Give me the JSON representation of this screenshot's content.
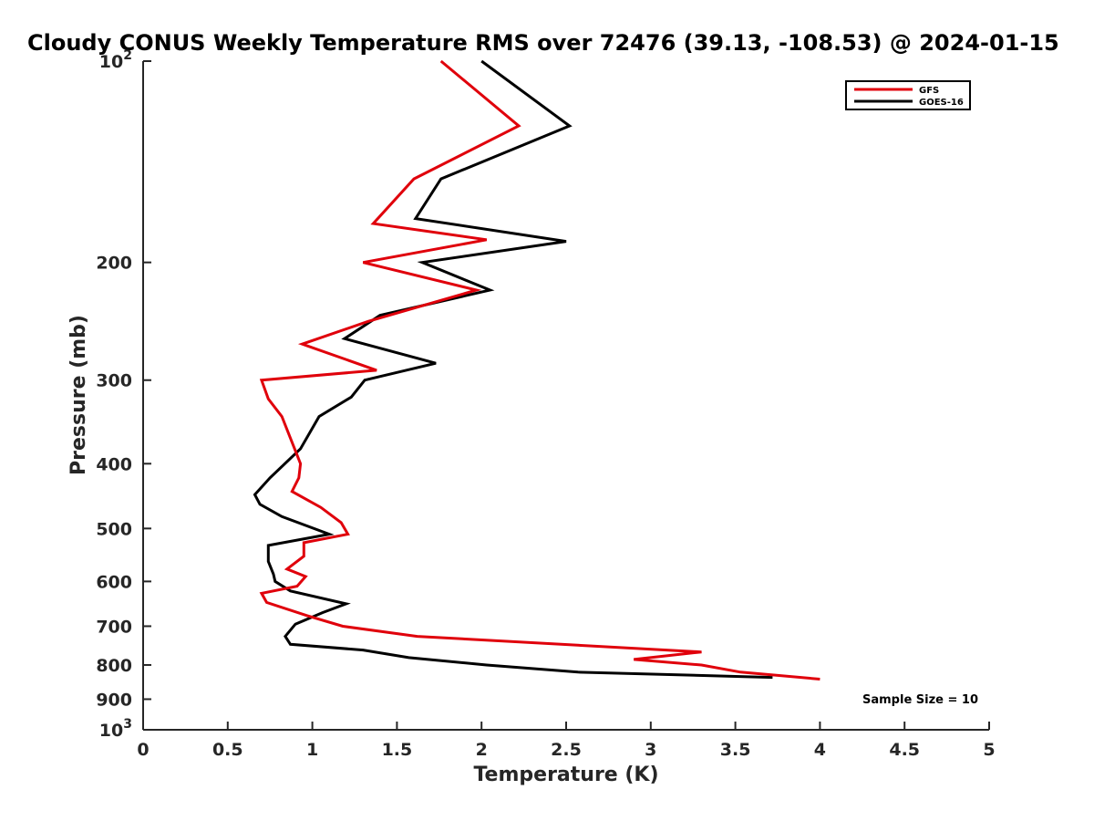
{
  "chart_data": {
    "type": "line",
    "title": "Cloudy CONUS Weekly Temperature RMS over 72476 (39.13, -108.53) @ 2024-01-15",
    "xlabel": "Temperature (K)",
    "ylabel": "Pressure (mb)",
    "xlim": [
      0,
      5
    ],
    "ylim": [
      100,
      1000
    ],
    "yscale": "log",
    "y_reversed": true,
    "grid": false,
    "legend_position": "top-right",
    "x_ticks": [
      0,
      0.5,
      1,
      1.5,
      2,
      2.5,
      3,
      3.5,
      4,
      4.5,
      5
    ],
    "x_tick_labels": [
      "0",
      "0.5",
      "1",
      "1.5",
      "2",
      "2.5",
      "3",
      "3.5",
      "4",
      "4.5",
      "5"
    ],
    "y_ticks": [
      100,
      200,
      300,
      400,
      500,
      600,
      700,
      800,
      900,
      1000
    ],
    "y_tick_labels": [
      {
        "base": "10",
        "exp": "2"
      },
      {
        "base": "200",
        "exp": ""
      },
      {
        "base": "300",
        "exp": ""
      },
      {
        "base": "400",
        "exp": ""
      },
      {
        "base": "500",
        "exp": ""
      },
      {
        "base": "600",
        "exp": ""
      },
      {
        "base": "700",
        "exp": ""
      },
      {
        "base": "800",
        "exp": ""
      },
      {
        "base": "900",
        "exp": ""
      },
      {
        "base": "10",
        "exp": "3"
      }
    ],
    "annotation": "Sample Size = 10",
    "series": [
      {
        "name": "GFS",
        "color": "#e0000b",
        "x": [
          1.76,
          2.22,
          1.6,
          1.36,
          2.03,
          1.3,
          1.97,
          1.33,
          0.94,
          1.38,
          0.7,
          0.74,
          0.82,
          0.93,
          0.92,
          0.88,
          1.05,
          1.17,
          1.21,
          0.95,
          0.95,
          0.85,
          0.96,
          0.91,
          0.7,
          0.73,
          0.97,
          1.18,
          1.62,
          3.3,
          2.9,
          3.3,
          3.53,
          4.0
        ],
        "y": [
          100,
          125,
          150,
          175,
          185,
          200,
          220,
          245,
          265,
          290,
          300,
          320,
          340,
          400,
          420,
          440,
          465,
          490,
          510,
          525,
          550,
          575,
          590,
          610,
          625,
          645,
          675,
          700,
          725,
          765,
          785,
          800,
          820,
          840
        ]
      },
      {
        "name": "GOES-16",
        "color": "#000000",
        "x": [
          2.0,
          2.52,
          1.76,
          1.61,
          2.5,
          1.65,
          2.05,
          1.4,
          1.19,
          1.73,
          1.31,
          1.23,
          1.04,
          0.93,
          0.75,
          0.66,
          0.69,
          0.82,
          1.1,
          0.74,
          0.74,
          0.77,
          0.78,
          0.87,
          1.2,
          1.06,
          0.9,
          0.84,
          0.87,
          1.3,
          1.57,
          2.03,
          2.57,
          3.72
        ],
        "y": [
          100,
          125,
          150,
          172,
          186,
          200,
          220,
          240,
          260,
          283,
          300,
          318,
          340,
          380,
          420,
          445,
          460,
          480,
          510,
          530,
          560,
          585,
          600,
          620,
          648,
          668,
          695,
          725,
          745,
          760,
          780,
          800,
          820,
          835
        ]
      }
    ]
  }
}
